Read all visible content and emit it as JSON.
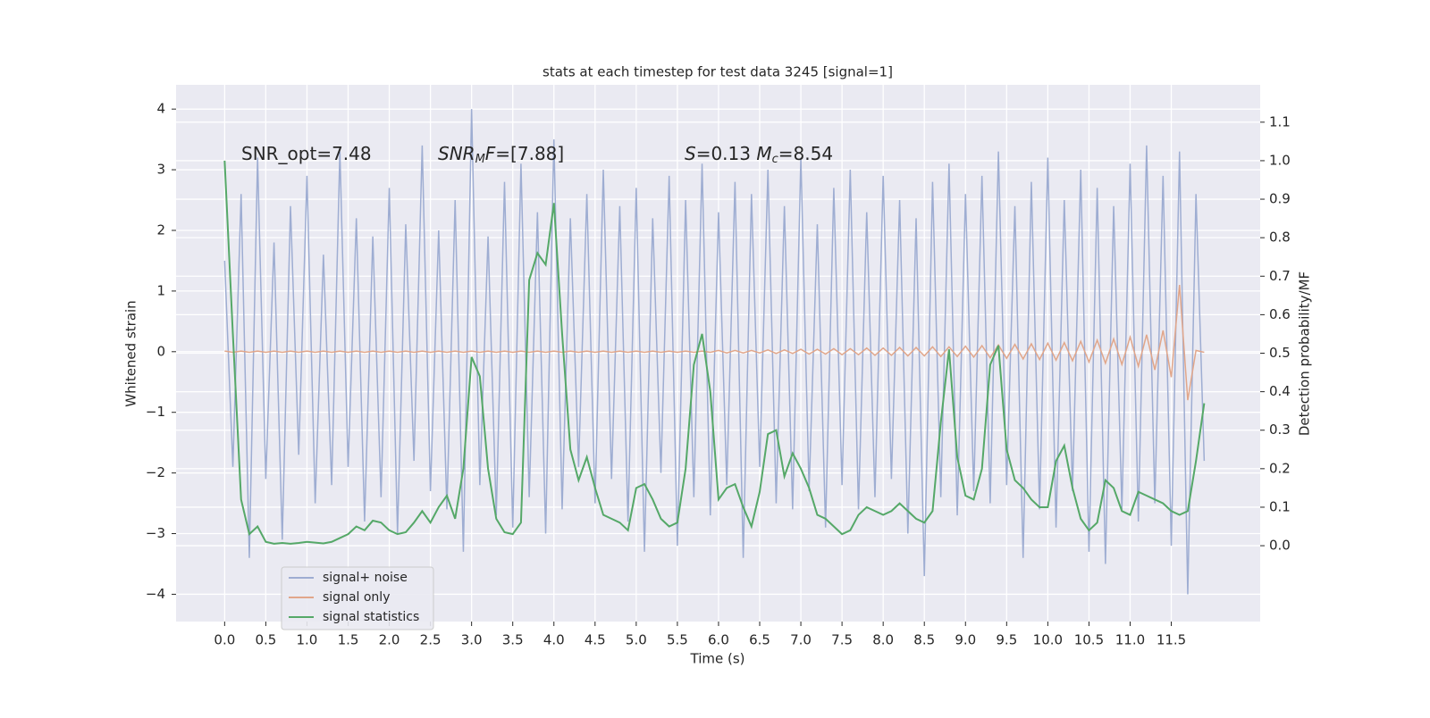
{
  "chart_data": {
    "type": "line",
    "title": "stats at each timestep for test data 3245 [signal=1]",
    "xlabel": "Time (s)",
    "ylabel": "Whitened strain",
    "y2label": "Detection probability/MF",
    "background": "#eaeaf2",
    "grid": true,
    "legend": "lower left",
    "xlim": [
      -0.59,
      12.58
    ],
    "ylim": [
      -4.45,
      4.4
    ],
    "y2lim": [
      -0.197,
      1.197
    ],
    "xticks": [
      {
        "value": 0,
        "label": "0.0"
      },
      {
        "value": 0.5,
        "label": "0.5"
      },
      {
        "value": 1,
        "label": "1.0"
      },
      {
        "value": 1.5,
        "label": "1.5"
      },
      {
        "value": 2,
        "label": "2.0"
      },
      {
        "value": 2.5,
        "label": "2.5"
      },
      {
        "value": 3,
        "label": "3.0"
      },
      {
        "value": 3.5,
        "label": "3.5"
      },
      {
        "value": 4,
        "label": "4.0"
      },
      {
        "value": 4.5,
        "label": "4.5"
      },
      {
        "value": 5,
        "label": "5.0"
      },
      {
        "value": 5.5,
        "label": "5.5"
      },
      {
        "value": 6,
        "label": "6.0"
      },
      {
        "value": 6.5,
        "label": "6.5"
      },
      {
        "value": 7,
        "label": "7.0"
      },
      {
        "value": 7.5,
        "label": "7.5"
      },
      {
        "value": 8,
        "label": "8.0"
      },
      {
        "value": 8.5,
        "label": "8.5"
      },
      {
        "value": 9,
        "label": "9.0"
      },
      {
        "value": 9.5,
        "label": "9.5"
      },
      {
        "value": 10,
        "label": "10.0"
      },
      {
        "value": 10.5,
        "label": "10.5"
      },
      {
        "value": 11,
        "label": "11.0"
      },
      {
        "value": 11.5,
        "label": "11.5"
      }
    ],
    "yticks": [
      {
        "value": -4,
        "label": "−4"
      },
      {
        "value": -3,
        "label": "−3"
      },
      {
        "value": -2,
        "label": "−2"
      },
      {
        "value": -1,
        "label": "−1"
      },
      0,
      1,
      2,
      3,
      4
    ],
    "y2ticks": [
      {
        "value": 0,
        "label": "0.0"
      },
      {
        "value": 0.1,
        "label": "0.1"
      },
      {
        "value": 0.2,
        "label": "0.2"
      },
      {
        "value": 0.3,
        "label": "0.3"
      },
      {
        "value": 0.4,
        "label": "0.4"
      },
      {
        "value": 0.5,
        "label": "0.5"
      },
      {
        "value": 0.6,
        "label": "0.6"
      },
      {
        "value": 0.7,
        "label": "0.7"
      },
      {
        "value": 0.8,
        "label": "0.8"
      },
      {
        "value": 0.9,
        "label": "0.9"
      },
      {
        "value": 1,
        "label": "1.0"
      },
      {
        "value": 1.1,
        "label": "1.1"
      }
    ],
    "annotations": [
      [
        {
          "text": "SNR_opt=7.48",
          "style": "normal"
        }
      ],
      [
        {
          "text": "SNR",
          "style": "italic"
        },
        {
          "text": "M",
          "style": "sub"
        },
        {
          "text": "F",
          "style": "italic"
        },
        {
          "text": "=[7.88]",
          "style": "normal"
        }
      ],
      [
        {
          "text": "S",
          "style": "italic"
        },
        {
          "text": "=0.13   ",
          "style": "normal"
        },
        {
          "text": "M",
          "style": "italic"
        },
        {
          "text": "c",
          "style": "sub"
        },
        {
          "text": "=8.54",
          "style": "normal"
        }
      ]
    ],
    "x": [
      0,
      0.1,
      0.2,
      0.3,
      0.4,
      0.5,
      0.6,
      0.7,
      0.8,
      0.9,
      1,
      1.1,
      1.2,
      1.3,
      1.4,
      1.5,
      1.6,
      1.7,
      1.8,
      1.9,
      2,
      2.1,
      2.2,
      2.3,
      2.4,
      2.5,
      2.6,
      2.7,
      2.8,
      2.9,
      3,
      3.1,
      3.2,
      3.3,
      3.4,
      3.5,
      3.6,
      3.7,
      3.8,
      3.9,
      4,
      4.1,
      4.2,
      4.3,
      4.4,
      4.5,
      4.6,
      4.7,
      4.8,
      4.9,
      5,
      5.1,
      5.2,
      5.3,
      5.4,
      5.5,
      5.6,
      5.7,
      5.8,
      5.9,
      6,
      6.1,
      6.2,
      6.3,
      6.4,
      6.5,
      6.6,
      6.7,
      6.8,
      6.9,
      7,
      7.1,
      7.2,
      7.3,
      7.4,
      7.5,
      7.6,
      7.7,
      7.8,
      7.9,
      8,
      8.1,
      8.2,
      8.3,
      8.4,
      8.5,
      8.6,
      8.7,
      8.8,
      8.9,
      9,
      9.1,
      9.2,
      9.3,
      9.4,
      9.5,
      9.6,
      9.7,
      9.8,
      9.9,
      10,
      10.1,
      10.2,
      10.3,
      10.4,
      10.5,
      10.6,
      10.7,
      10.8,
      10.9,
      11,
      11.1,
      11.2,
      11.3,
      11.4,
      11.5,
      11.6,
      11.7,
      11.8,
      11.9
    ],
    "series": [
      {
        "name": "signal+ noise",
        "color": "#9eadd2",
        "values": [
          1.5,
          -1.9,
          2.6,
          -3.4,
          3.2,
          -2.1,
          1.8,
          -3.1,
          2.4,
          -1.7,
          2.9,
          -2.5,
          1.6,
          -2.2,
          3.3,
          -1.9,
          2.2,
          -2.8,
          1.9,
          -2.4,
          2.7,
          -3.0,
          2.1,
          -1.8,
          3.4,
          -2.3,
          2.0,
          -2.6,
          2.5,
          -3.3,
          4.0,
          -2.2,
          1.9,
          -2.7,
          2.8,
          -2.9,
          3.1,
          -2.4,
          2.3,
          -3.0,
          3.5,
          -2.6,
          2.2,
          -1.9,
          2.6,
          -2.5,
          3.0,
          -2.1,
          2.4,
          -2.8,
          2.7,
          -3.3,
          2.2,
          -2.0,
          2.9,
          -3.2,
          2.5,
          -2.4,
          3.1,
          -2.7,
          2.3,
          -2.2,
          2.8,
          -3.4,
          2.6,
          -1.9,
          3.0,
          -2.5,
          2.4,
          -2.6,
          3.2,
          -2.3,
          2.1,
          -2.9,
          2.7,
          -2.2,
          3.0,
          -2.6,
          2.3,
          -2.4,
          2.9,
          -2.1,
          2.5,
          -3.0,
          2.2,
          -3.7,
          2.8,
          -2.4,
          3.1,
          -2.7,
          2.6,
          -2.3,
          2.9,
          -2.5,
          3.3,
          -2.2,
          2.4,
          -3.4,
          2.8,
          -2.6,
          3.2,
          -2.9,
          2.5,
          -2.3,
          3.0,
          -3.3,
          2.7,
          -3.5,
          2.4,
          -2.6,
          3.1,
          -2.8,
          3.4,
          -2.5,
          2.9,
          -3.2,
          3.3,
          -4.0,
          2.6,
          -1.8
        ]
      },
      {
        "name": "signal only",
        "color": "#e1a68a",
        "values": [
          0.01,
          -0.01,
          0.01,
          -0.01,
          0.01,
          -0.01,
          0.01,
          -0.01,
          0.01,
          -0.01,
          0.01,
          -0.01,
          0.01,
          -0.01,
          0.01,
          -0.01,
          0.01,
          -0.01,
          0.01,
          -0.01,
          0.01,
          -0.01,
          0.01,
          -0.01,
          0.01,
          -0.01,
          0.01,
          -0.01,
          0.01,
          -0.01,
          0.01,
          -0.01,
          0.01,
          -0.01,
          0.01,
          -0.01,
          0.01,
          -0.01,
          0.01,
          -0.01,
          0.01,
          -0.01,
          0.01,
          -0.01,
          0.01,
          -0.01,
          0.01,
          -0.01,
          0.01,
          -0.01,
          0.01,
          -0.01,
          0.01,
          -0.01,
          0.01,
          -0.01,
          0.01,
          -0.01,
          0.01,
          -0.01,
          0.02,
          -0.02,
          0.02,
          -0.02,
          0.02,
          -0.02,
          0.03,
          -0.03,
          0.03,
          -0.03,
          0.04,
          -0.04,
          0.04,
          -0.04,
          0.05,
          -0.05,
          0.05,
          -0.05,
          0.06,
          -0.06,
          0.06,
          -0.06,
          0.07,
          -0.07,
          0.07,
          -0.07,
          0.08,
          -0.08,
          0.08,
          -0.08,
          0.09,
          -0.09,
          0.1,
          -0.1,
          0.11,
          -0.11,
          0.12,
          -0.12,
          0.13,
          -0.13,
          0.14,
          -0.14,
          0.15,
          -0.15,
          0.17,
          -0.17,
          0.19,
          -0.19,
          0.21,
          -0.21,
          0.24,
          -0.24,
          0.28,
          -0.3,
          0.35,
          -0.42,
          1.1,
          -0.8,
          0.02,
          -0.01
        ]
      },
      {
        "name": "signal statistics",
        "color": "#55a868",
        "axis": "y2",
        "values": [
          1.0,
          0.55,
          0.12,
          0.03,
          0.05,
          0.01,
          0.005,
          0.007,
          0.005,
          0.007,
          0.01,
          0.008,
          0.006,
          0.01,
          0.02,
          0.03,
          0.05,
          0.04,
          0.065,
          0.06,
          0.04,
          0.03,
          0.035,
          0.06,
          0.09,
          0.06,
          0.1,
          0.13,
          0.07,
          0.2,
          0.49,
          0.44,
          0.2,
          0.07,
          0.035,
          0.03,
          0.06,
          0.69,
          0.76,
          0.73,
          0.89,
          0.55,
          0.25,
          0.17,
          0.23,
          0.15,
          0.08,
          0.07,
          0.06,
          0.04,
          0.15,
          0.16,
          0.12,
          0.07,
          0.05,
          0.06,
          0.2,
          0.47,
          0.55,
          0.4,
          0.12,
          0.15,
          0.16,
          0.1,
          0.05,
          0.14,
          0.29,
          0.3,
          0.18,
          0.24,
          0.2,
          0.15,
          0.08,
          0.07,
          0.05,
          0.03,
          0.04,
          0.08,
          0.1,
          0.09,
          0.08,
          0.09,
          0.11,
          0.09,
          0.07,
          0.06,
          0.09,
          0.32,
          0.51,
          0.23,
          0.13,
          0.12,
          0.2,
          0.47,
          0.52,
          0.25,
          0.17,
          0.15,
          0.12,
          0.1,
          0.1,
          0.22,
          0.26,
          0.15,
          0.07,
          0.04,
          0.06,
          0.17,
          0.15,
          0.09,
          0.08,
          0.14,
          0.13,
          0.12,
          0.11,
          0.09,
          0.08,
          0.09,
          0.22,
          0.37
        ]
      }
    ]
  }
}
